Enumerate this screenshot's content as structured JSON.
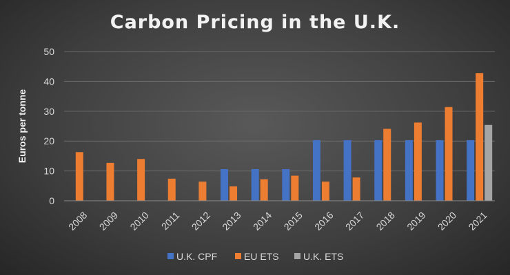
{
  "chart_data": {
    "type": "bar",
    "title": "Carbon Pricing in the U.K.",
    "xlabel": "",
    "ylabel": "Euros per tonne",
    "ylim": [
      0,
      50
    ],
    "yticks": [
      0,
      10,
      20,
      30,
      40,
      50
    ],
    "grid": true,
    "legend_position": "bottom",
    "categories": [
      "2008",
      "2009",
      "2010",
      "2011",
      "2012",
      "2013",
      "2014",
      "2015",
      "2016",
      "2017",
      "2018",
      "2019",
      "2020",
      "2021"
    ],
    "series": [
      {
        "name": "U.K. CPF",
        "color": "#4472c4",
        "values": [
          null,
          null,
          null,
          null,
          null,
          10.6,
          10.6,
          10.6,
          20.3,
          20.3,
          20.3,
          20.3,
          20.3,
          20.3
        ]
      },
      {
        "name": "EU ETS",
        "color": "#ed7d31",
        "values": [
          16.3,
          12.7,
          14.0,
          7.4,
          6.4,
          4.8,
          7.2,
          8.4,
          6.4,
          7.8,
          24.1,
          26.2,
          31.4,
          42.8
        ]
      },
      {
        "name": "U.K. ETS",
        "color": "#a5a5a5",
        "values": [
          null,
          null,
          null,
          null,
          null,
          null,
          null,
          null,
          null,
          null,
          null,
          null,
          null,
          25.4
        ]
      }
    ]
  }
}
